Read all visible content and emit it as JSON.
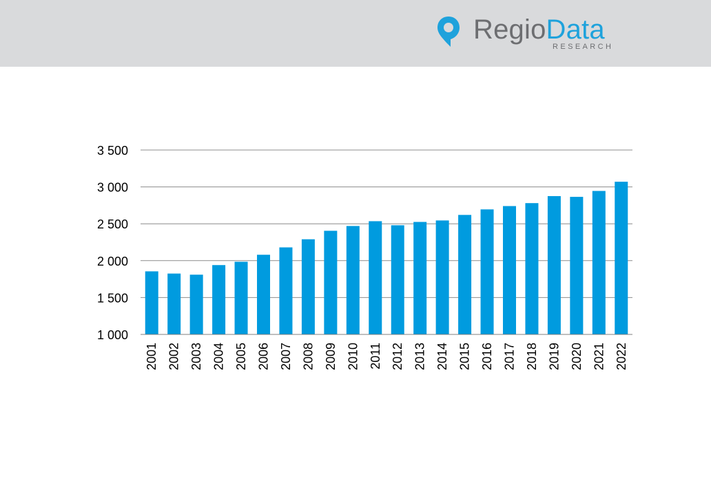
{
  "header": {
    "logo_primary": "Regio",
    "logo_accent": "Data",
    "logo_sub": "RESEARCH",
    "colors": {
      "band": "#d9dadc",
      "brand_gray": "#6d6e71",
      "brand_blue": "#1ea2dc"
    },
    "icon": "location-pin-icon"
  },
  "chart_data": {
    "type": "bar",
    "title": "",
    "xlabel": "",
    "ylabel": "",
    "categories": [
      "2001",
      "2002",
      "2003",
      "2004",
      "2005",
      "2006",
      "2007",
      "2008",
      "2009",
      "2010",
      "2011",
      "2012",
      "2013",
      "2014",
      "2015",
      "2016",
      "2017",
      "2018",
      "2019",
      "2020",
      "2021",
      "2022"
    ],
    "values": [
      1855,
      1825,
      1810,
      1940,
      1985,
      2080,
      2180,
      2290,
      2405,
      2470,
      2535,
      2480,
      2525,
      2545,
      2620,
      2695,
      2740,
      2780,
      2875,
      2865,
      2945,
      3070
    ],
    "ylim": [
      1000,
      3500
    ],
    "yticks": [
      1000,
      1500,
      2000,
      2500,
      3000,
      3500
    ],
    "ytick_labels": [
      "1 000",
      "1 500",
      "2 000",
      "2 500",
      "3 000",
      "3 500"
    ],
    "grid": true,
    "bar_color": "#009bdf"
  }
}
